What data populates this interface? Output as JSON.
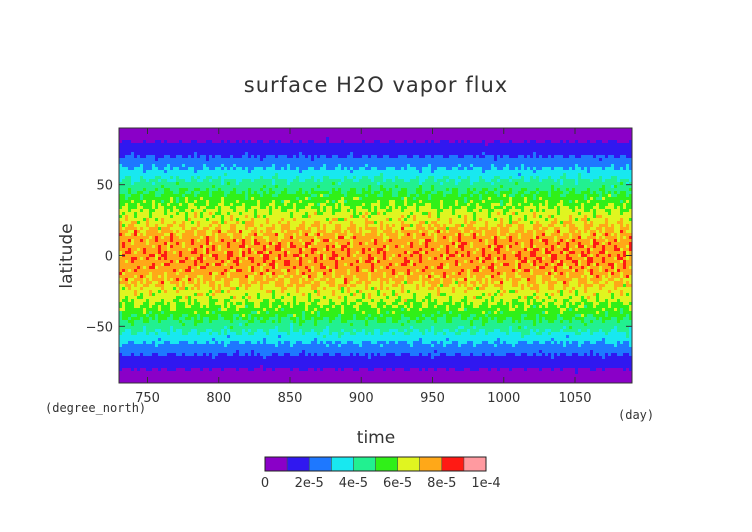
{
  "chart_data": {
    "type": "heatmap",
    "title": "surface H2O vapor flux",
    "xlabel": "time",
    "ylabel": "latitude",
    "x_unit": "(day)",
    "y_unit": "(degree_north)",
    "xlim": [
      730,
      1090
    ],
    "ylim": [
      -90,
      90
    ],
    "x_ticks": [
      750,
      800,
      850,
      900,
      950,
      1000,
      1050
    ],
    "y_ticks": [
      50,
      0,
      -50
    ],
    "y_tick_labels": [
      "50",
      "0",
      "−50"
    ],
    "latitude_profile": {
      "latitude": [
        -90,
        -80,
        -70,
        -60,
        -50,
        -40,
        -30,
        -20,
        -10,
        0,
        10,
        20,
        30,
        40,
        50,
        60,
        70,
        80,
        90
      ],
      "value": [
        5e-06,
        1e-05,
        2e-05,
        3.2e-05,
        4.5e-05,
        5.5e-05,
        6.3e-05,
        7e-05,
        7.5e-05,
        7.7e-05,
        7.5e-05,
        7e-05,
        6.3e-05,
        5.5e-05,
        4.5e-05,
        3.2e-05,
        2e-05,
        1e-05,
        5e-06
      ]
    },
    "colorbar": {
      "levels": [
        0,
        1e-05,
        2e-05,
        3e-05,
        4e-05,
        5e-05,
        6e-05,
        7e-05,
        8e-05,
        9e-05,
        0.0001
      ],
      "colors": [
        "#8a00c8",
        "#3018f0",
        "#1e78ff",
        "#18e8f0",
        "#22f090",
        "#30f018",
        "#e0f520",
        "#ffa818",
        "#ff1a14",
        "#ff9aa0"
      ],
      "tick_labels": [
        "0",
        "2e-5",
        "4e-5",
        "6e-5",
        "8e-5",
        "1e-4"
      ]
    }
  }
}
